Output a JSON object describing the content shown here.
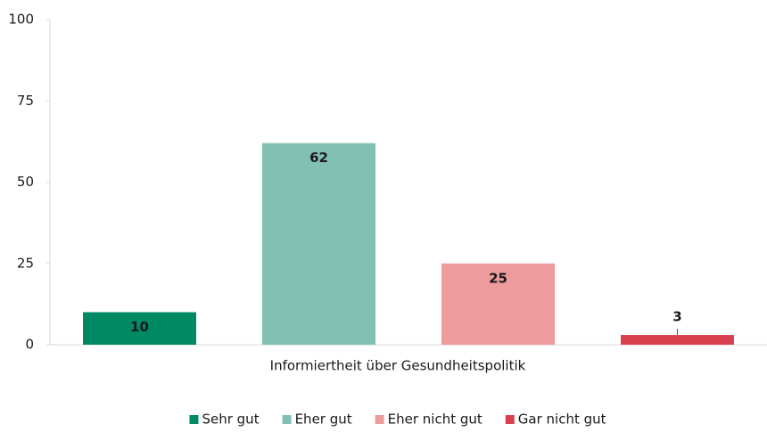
{
  "chart_data": {
    "type": "bar",
    "categories": [
      "Informiertheit über Gesundheitspolitik"
    ],
    "series": [
      {
        "name": "Sehr gut",
        "color": "#008a63",
        "values": [
          10
        ]
      },
      {
        "name": "Eher gut",
        "color": "#82c0b4",
        "values": [
          62
        ]
      },
      {
        "name": "Eher nicht gut",
        "color": "#ed9b9c",
        "values": [
          25
        ]
      },
      {
        "name": "Gar nicht gut",
        "color": "#d9404f",
        "values": [
          3
        ]
      }
    ],
    "ylim": [
      0,
      100
    ],
    "yticks": [
      0,
      25,
      50,
      75,
      100
    ],
    "grid": false,
    "legend": "bottom"
  }
}
